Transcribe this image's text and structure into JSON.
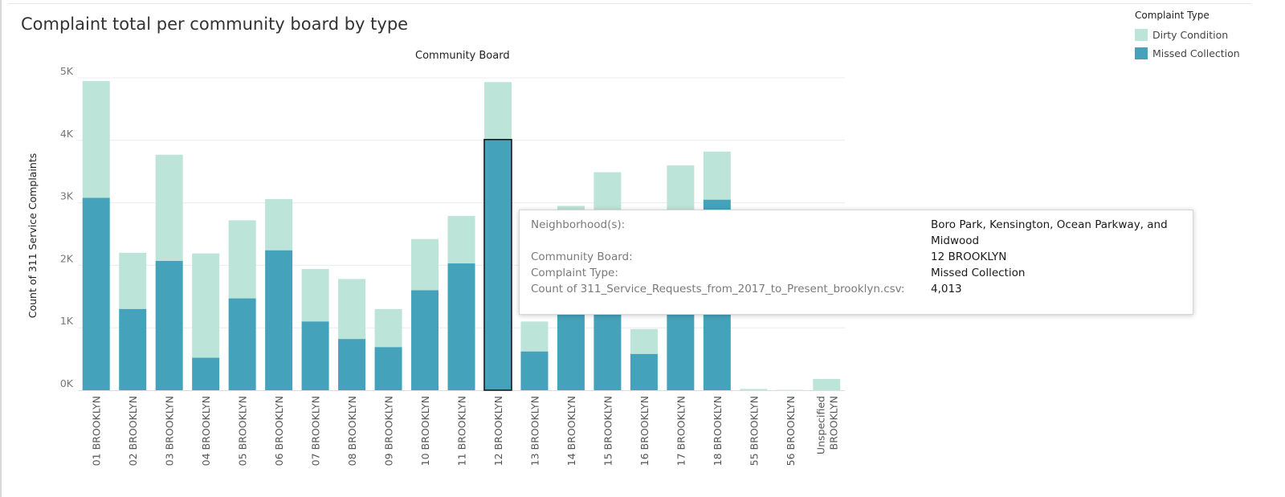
{
  "title": "Complaint total per community board by type",
  "column_header": "Community Board",
  "legend": {
    "title": "Complaint Type",
    "items": [
      {
        "label": "Dirty Condition",
        "color": "#bde4d8"
      },
      {
        "label": "Missed Collection",
        "color": "#45a2bb"
      }
    ]
  },
  "tooltip": {
    "rows": [
      {
        "label": "Neighborhood(s):",
        "value": "Boro Park, Kensington, Ocean Parkway, and Midwood"
      },
      {
        "label": "Community Board:",
        "value": "12 BROOKLYN"
      },
      {
        "label": "Complaint Type:",
        "value": "Missed Collection"
      },
      {
        "label": "Count of 311_Service_Requests_from_2017_to_Present_brooklyn.csv:",
        "value": "4,013"
      }
    ]
  },
  "chart_data": {
    "type": "bar",
    "stacked": true,
    "title": "Complaint total per community board by type",
    "xlabel": "Community Board",
    "ylabel": "Count of 311 Service Complaints",
    "ylim": [
      0,
      5000
    ],
    "yticks": [
      {
        "value": 0,
        "label": "0K"
      },
      {
        "value": 1000,
        "label": "1K"
      },
      {
        "value": 2000,
        "label": "2K"
      },
      {
        "value": 3000,
        "label": "3K"
      },
      {
        "value": 4000,
        "label": "4K"
      },
      {
        "value": 5000,
        "label": "5K"
      }
    ],
    "categories": [
      "01 BROOKLYN",
      "02 BROOKLYN",
      "03 BROOKLYN",
      "04 BROOKLYN",
      "05 BROOKLYN",
      "06 BROOKLYN",
      "07 BROOKLYN",
      "08 BROOKLYN",
      "09 BROOKLYN",
      "10 BROOKLYN",
      "11 BROOKLYN",
      "12 BROOKLYN",
      "13 BROOKLYN",
      "14 BROOKLYN",
      "15 BROOKLYN",
      "16 BROOKLYN",
      "17 BROOKLYN",
      "18 BROOKLYN",
      "55 BROOKLYN",
      "56 BROOKLYN",
      [
        "Unspecified",
        "BROOKLYN"
      ]
    ],
    "series": [
      {
        "name": "Missed Collection",
        "color": "#45a2bb",
        "values": [
          3080,
          1300,
          2070,
          520,
          1470,
          2240,
          1100,
          820,
          690,
          1600,
          2030,
          4013,
          620,
          1980,
          2200,
          580,
          2100,
          3050,
          0,
          0,
          0
        ]
      },
      {
        "name": "Dirty Condition",
        "color": "#bde4d8",
        "values": [
          1870,
          900,
          1700,
          1670,
          1250,
          820,
          840,
          960,
          610,
          820,
          760,
          920,
          480,
          970,
          1290,
          400,
          1500,
          770,
          20,
          5,
          180
        ]
      }
    ],
    "highlighted_index": 11
  }
}
